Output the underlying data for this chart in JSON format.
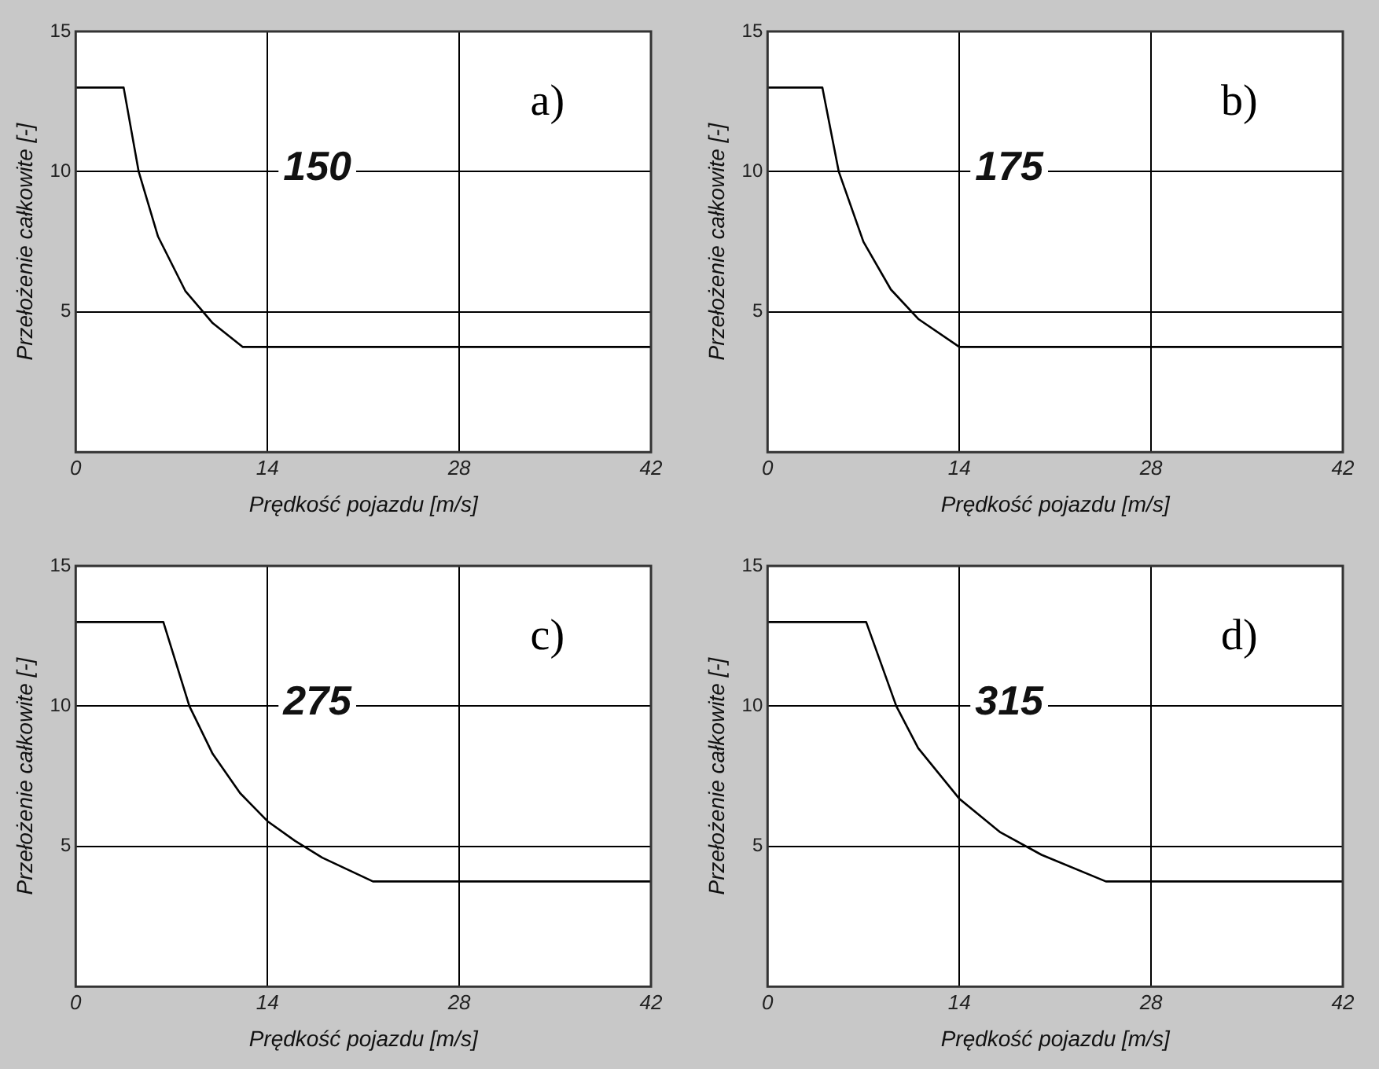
{
  "chart_data": [
    {
      "type": "line",
      "title": "a)",
      "xlabel": "Prędkość pojazdu [m/s]",
      "ylabel": "Przełożenie całkowite [-]",
      "annotations": [
        "150"
      ],
      "xlim": [
        0,
        42
      ],
      "xticks": [
        0,
        14,
        28,
        42
      ],
      "ylim": [
        0,
        15
      ],
      "yticks": [
        5,
        10,
        15
      ],
      "grid": true,
      "legend": false,
      "marker": "none",
      "line_style": "solid",
      "series": [
        {
          "color": "#000000",
          "x": [
            0,
            3.5,
            4.6,
            6,
            8,
            10,
            12.2,
            42
          ],
          "values": [
            13,
            13,
            10,
            7.7,
            5.75,
            4.6,
            3.75,
            3.75
          ]
        }
      ]
    },
    {
      "type": "line",
      "title": "b)",
      "xlabel": "Prędkość pojazdu [m/s]",
      "ylabel": "Przełożenie całkowite [-]",
      "annotations": [
        "175"
      ],
      "xlim": [
        0,
        42
      ],
      "xticks": [
        0,
        14,
        28,
        42
      ],
      "ylim": [
        0,
        15
      ],
      "yticks": [
        5,
        10,
        15
      ],
      "grid": true,
      "legend": false,
      "marker": "none",
      "line_style": "solid",
      "series": [
        {
          "color": "#000000",
          "x": [
            0,
            4,
            5.2,
            7,
            9,
            11,
            14,
            42
          ],
          "values": [
            13,
            13,
            10,
            7.5,
            5.8,
            4.75,
            3.75,
            3.75
          ]
        }
      ]
    },
    {
      "type": "line",
      "title": "c)",
      "xlabel": "Prędkość pojazdu [m/s]",
      "ylabel": "Przełożenie całkowite [-]",
      "annotations": [
        "275"
      ],
      "xlim": [
        0,
        42
      ],
      "xticks": [
        0,
        14,
        28,
        42
      ],
      "ylim": [
        0,
        15
      ],
      "yticks": [
        5,
        10,
        15
      ],
      "grid": true,
      "legend": false,
      "marker": "none",
      "line_style": "solid",
      "series": [
        {
          "color": "#000000",
          "x": [
            0,
            6.4,
            8.3,
            10,
            12,
            14,
            16,
            18,
            21.7,
            42
          ],
          "values": [
            13,
            13,
            10,
            8.3,
            6.9,
            5.9,
            5.2,
            4.6,
            3.75,
            3.75
          ]
        }
      ]
    },
    {
      "type": "line",
      "title": "d)",
      "xlabel": "Prędkość pojazdu [m/s]",
      "ylabel": "Przełożenie całkowite [-]",
      "annotations": [
        "315"
      ],
      "xlim": [
        0,
        42
      ],
      "xticks": [
        0,
        14,
        28,
        42
      ],
      "ylim": [
        0,
        15
      ],
      "yticks": [
        5,
        10,
        15
      ],
      "grid": true,
      "legend": false,
      "marker": "none",
      "line_style": "solid",
      "series": [
        {
          "color": "#000000",
          "x": [
            0,
            7.2,
            9.4,
            11,
            14,
            17,
            20,
            24.7,
            42
          ],
          "values": [
            13,
            13,
            10,
            8.5,
            6.7,
            5.5,
            4.7,
            3.75,
            3.75
          ]
        }
      ]
    }
  ]
}
